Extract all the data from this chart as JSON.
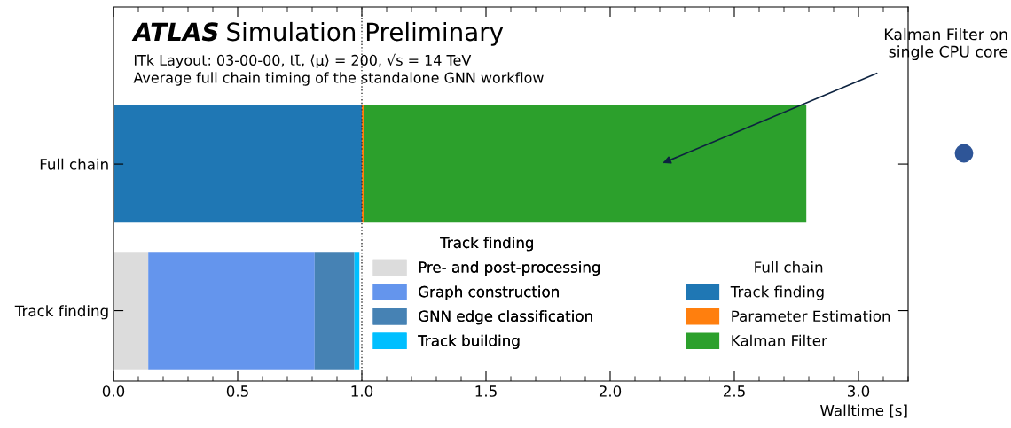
{
  "chart_data": {
    "type": "bar",
    "orientation": "horizontal",
    "stacked": true,
    "title": "ATLAS Simulation Preliminary",
    "subtitle": "ITk Layout: 03-00-00, tt̄, ⟨μ⟩ = 200, √s = 14 TeV\nAverage full chain timing of the standalone GNN workflow",
    "xlabel": "Walltime [s]",
    "categories": [
      "Full chain",
      "Track finding"
    ],
    "series": [
      {
        "name": "Pre- and post-processing",
        "color": "#dcdcdc",
        "values": [
          null,
          0.14
        ]
      },
      {
        "name": "Graph construction",
        "color": "#6495ed",
        "values": [
          null,
          0.67
        ]
      },
      {
        "name": "GNN edge classification",
        "color": "#4682b4",
        "values": [
          null,
          0.16
        ]
      },
      {
        "name": "Track building",
        "color": "#00bfff",
        "values": [
          null,
          0.02
        ]
      },
      {
        "name": "Track finding",
        "color": "#1f77b4",
        "values": [
          1.0,
          null
        ]
      },
      {
        "name": "Parameter Estimation",
        "color": "#ff7f0e",
        "values": [
          0.01,
          null
        ]
      },
      {
        "name": "Kalman Filter",
        "color": "#2ca02c",
        "values": [
          1.78,
          null
        ]
      }
    ],
    "xlim": [
      0,
      3.2
    ],
    "xticks": [
      {
        "value": 0,
        "label": "0.0"
      },
      {
        "value": 0.5,
        "label": "0.5"
      },
      {
        "value": 1.0,
        "label": "1.0"
      },
      {
        "value": 1.5,
        "label": "1.5"
      },
      {
        "value": 2.0,
        "label": "2.0"
      },
      {
        "value": 2.5,
        "label": "2.5"
      },
      {
        "value": 3.0,
        "label": "3.0"
      }
    ],
    "ref_lines": [
      {
        "axis": "x",
        "value": 1.0,
        "color": "#333333",
        "line_style": "dotted"
      }
    ],
    "annotations": [
      "Kalman Filter on\nsingle CPU core"
    ],
    "legend": "bottom right",
    "grid": false
  }
}
